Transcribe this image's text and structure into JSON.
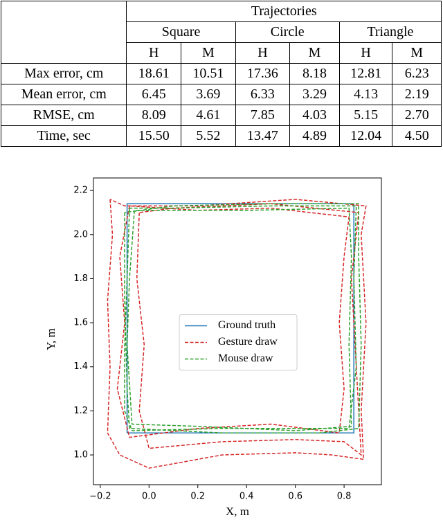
{
  "table": {
    "header": "Trajectories",
    "groups": [
      "Square",
      "Circle",
      "Triangle"
    ],
    "subheaders": [
      "H",
      "M",
      "H",
      "M",
      "H",
      "M"
    ],
    "rows": [
      [
        "Max error, cm",
        "18.61",
        "10.51",
        "17.36",
        "8.18",
        "12.81",
        "6.23"
      ],
      [
        "Mean error, cm",
        "6.45",
        "3.69",
        "6.33",
        "3.29",
        "4.13",
        "2.19"
      ],
      [
        "RMSE, cm",
        "8.09",
        "4.61",
        "7.85",
        "4.03",
        "5.15",
        "2.70"
      ],
      [
        "Time, sec",
        "15.50",
        "5.52",
        "13.47",
        "4.89",
        "12.04",
        "4.50"
      ]
    ]
  },
  "chart_data": {
    "type": "line",
    "xlabel": "X, m",
    "ylabel": "Y, m",
    "xlim": [
      -0.228,
      0.953
    ],
    "ylim": [
      0.865,
      2.257
    ],
    "xticks": [
      {
        "value": -0.2,
        "label": "−0.2"
      },
      {
        "value": 0,
        "label": "0.0"
      },
      0.2,
      0.4,
      0.6,
      0.8
    ],
    "yticks": [
      {
        "value": 1,
        "label": "1.0"
      },
      1.2,
      1.4,
      1.6,
      1.8,
      {
        "value": 2,
        "label": "2.0"
      },
      2.2
    ],
    "legend": "center",
    "series": [
      {
        "name": "Ground truth",
        "color": "#1f77b4",
        "dashed": false,
        "x": [
          -0.09,
          0.84,
          0.84,
          -0.09,
          -0.09
        ],
        "values": [
          1.1,
          1.1,
          2.14,
          2.14,
          1.1
        ]
      },
      {
        "name": "Gesture draw",
        "color": "#d62728",
        "dashed": true,
        "x": [
          -0.16,
          -0.15,
          -0.17,
          -0.16,
          -0.17,
          -0.12,
          0.0,
          0.3,
          0.6,
          0.75,
          0.88,
          0.87,
          0.89,
          0.87,
          0.89,
          0.6,
          0.2,
          -0.1,
          -0.16,
          null,
          -0.08,
          -0.12,
          -0.1,
          -0.13,
          -0.08,
          0.2,
          0.5,
          0.78,
          0.8,
          0.78,
          0.8,
          0.82,
          0.5,
          0.2,
          -0.08,
          null,
          -0.04,
          -0.05,
          -0.02,
          -0.04,
          0.0,
          0.3,
          0.6,
          0.8,
          0.87,
          0.85,
          0.83,
          0.86,
          0.5,
          0.1,
          -0.04
        ],
        "values": [
          2.16,
          2.0,
          1.7,
          1.4,
          1.1,
          1.0,
          0.94,
          1.0,
          1.01,
          1.0,
          0.98,
          1.2,
          1.6,
          2.0,
          2.13,
          2.16,
          2.13,
          2.13,
          2.16,
          null,
          2.13,
          1.9,
          1.6,
          1.3,
          1.08,
          1.12,
          1.14,
          1.1,
          1.3,
          1.6,
          1.9,
          2.08,
          2.12,
          2.11,
          2.13,
          null,
          2.1,
          1.8,
          1.5,
          1.2,
          1.03,
          1.06,
          1.07,
          1.06,
          1.0,
          1.4,
          1.8,
          2.1,
          2.14,
          2.12,
          2.1
        ]
      },
      {
        "name": "Mouse draw",
        "color": "#2ca02c",
        "dashed": true,
        "x": [
          -0.08,
          -0.09,
          -0.1,
          -0.1,
          -0.07,
          0.3,
          0.6,
          0.82,
          0.85,
          0.84,
          0.85,
          0.5,
          0.1,
          -0.08,
          null,
          -0.1,
          -0.1,
          -0.09,
          -0.08,
          0.3,
          0.7,
          0.86,
          0.87,
          0.86,
          0.86,
          0.5,
          0.1,
          -0.1,
          null,
          -0.06,
          -0.08,
          -0.09,
          -0.07,
          0.2,
          0.6,
          0.83,
          0.82,
          0.83,
          0.82,
          0.4,
          -0.06
        ],
        "values": [
          2.12,
          1.8,
          1.5,
          1.2,
          1.11,
          1.12,
          1.12,
          1.12,
          1.4,
          1.8,
          2.13,
          2.13,
          2.12,
          2.12,
          null,
          2.1,
          1.7,
          1.3,
          1.12,
          1.1,
          1.1,
          1.12,
          1.5,
          1.9,
          2.14,
          2.14,
          2.13,
          2.1,
          null,
          2.11,
          1.8,
          1.5,
          1.14,
          1.13,
          1.11,
          1.13,
          1.5,
          1.9,
          2.12,
          2.11,
          2.11
        ]
      }
    ]
  }
}
